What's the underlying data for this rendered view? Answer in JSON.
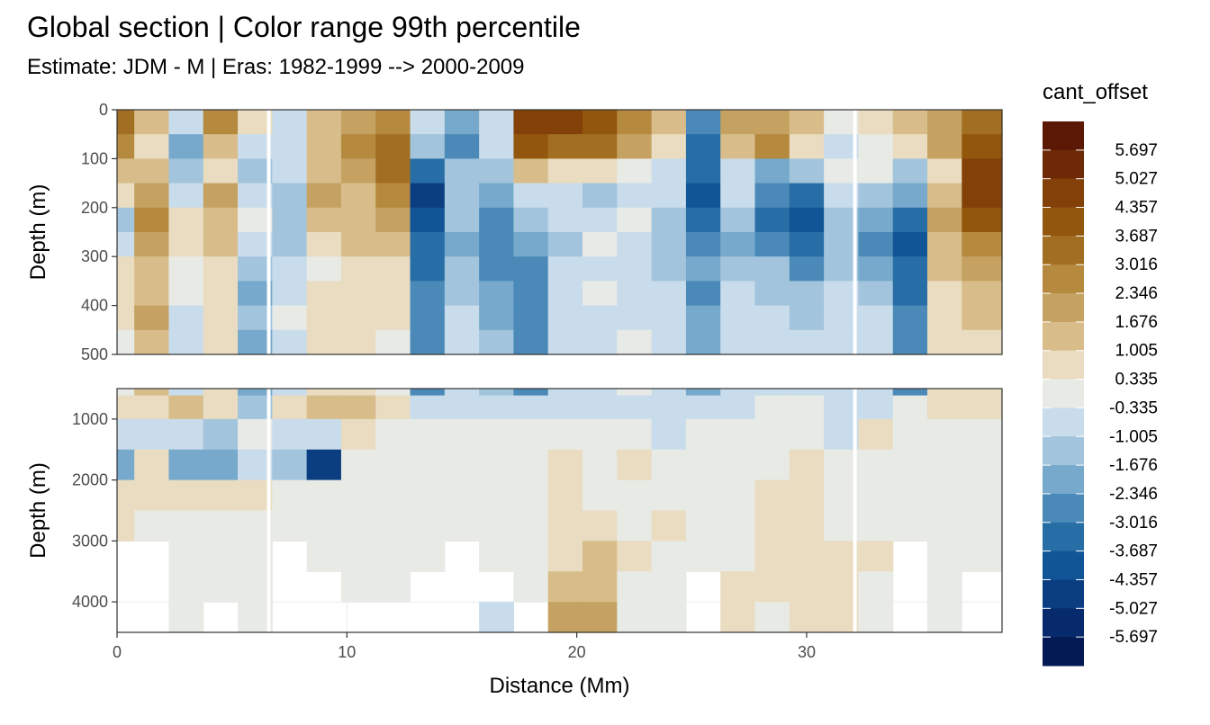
{
  "title": "Global section | Color range 99th percentile",
  "subtitle": "Estimate: JDM - M | Eras: 1982-1999 --> 2000-2009",
  "chart_data": {
    "type": "heatmap",
    "xlabel": "Distance (Mm)",
    "xlim": [
      0,
      38.5
    ],
    "x_ticks": [
      0,
      10,
      20,
      30
    ],
    "panels": [
      {
        "name": "upper",
        "ylabel": "Depth (m)",
        "ylim": [
          0,
          500
        ],
        "y_ticks": [
          0,
          100,
          200,
          300,
          400,
          500
        ],
        "reversed": true
      },
      {
        "name": "lower",
        "ylabel": "Depth (m)",
        "ylim": [
          500,
          4500
        ],
        "y_ticks": [
          1000,
          2000,
          3000,
          4000
        ],
        "reversed": true
      }
    ],
    "gap_lines_x": [
      6.6,
      32.1
    ],
    "colorbar": {
      "title": "cant_offset",
      "labels": [
        "5.697",
        "5.027",
        "4.357",
        "3.687",
        "3.016",
        "2.346",
        "1.676",
        "1.005",
        "0.335",
        "-0.335",
        "-1.005",
        "-1.676",
        "-2.346",
        "-3.016",
        "-3.687",
        "-4.357",
        "-5.027",
        "-5.697"
      ],
      "colors": [
        "#5b1805",
        "#6e2a07",
        "#834009",
        "#92560d",
        "#a26f22",
        "#b5893e",
        "#c5a262",
        "#d8bd8a",
        "#e9dcc1",
        "#e8eae6",
        "#c9dceb",
        "#a2c4dc",
        "#76a9cb",
        "#4b8ab8",
        "#286ea6",
        "#125596",
        "#0a3e81",
        "#062a6b",
        "#041a55"
      ]
    },
    "section": {
      "x": [
        0,
        1.5,
        3,
        4.5,
        6,
        7.5,
        9,
        10.5,
        12,
        13.5,
        15,
        16.5,
        18,
        19.5,
        21,
        22.5,
        24,
        25.5,
        27,
        28.5,
        30,
        31.5,
        33,
        34.5,
        36,
        37.5
      ],
      "depth": [
        25,
        75,
        125,
        175,
        225,
        275,
        325,
        375,
        425,
        475,
        750,
        1250,
        1750,
        2250,
        2750,
        3250,
        3750,
        4250
      ],
      "values": [
        [
          3.1,
          1.4,
          -0.8,
          2.4,
          1.0,
          -0.4,
          1.5,
          2.1,
          2.5,
          -0.6,
          -2.0,
          -0.4,
          4.6,
          4.4,
          4.0,
          2.6,
          1.2,
          -3.0,
          1.8,
          2.2,
          1.2,
          -0.3,
          0.6,
          1.6,
          2.3,
          3.5
        ],
        [
          2.8,
          1.0,
          -2.2,
          1.6,
          -1.0,
          -0.6,
          1.1,
          2.4,
          3.3,
          -1.2,
          -2.6,
          -1.0,
          4.2,
          3.6,
          3.5,
          2.2,
          0.8,
          -3.6,
          1.4,
          2.6,
          1.0,
          -0.6,
          0.2,
          1.0,
          1.8,
          3.9
        ],
        [
          1.6,
          1.2,
          -1.6,
          1.0,
          -1.6,
          -0.8,
          1.6,
          2.2,
          3.6,
          -3.2,
          -1.5,
          -1.6,
          1.4,
          0.6,
          0.6,
          0.3,
          -0.5,
          -3.2,
          -0.4,
          -2.0,
          -1.2,
          -0.3,
          0.3,
          -1.2,
          1.0,
          4.5
        ],
        [
          1.0,
          2.3,
          -0.4,
          1.9,
          -0.8,
          -1.2,
          2.0,
          1.6,
          3.0,
          -4.4,
          -1.2,
          -2.1,
          -0.7,
          -0.9,
          -1.1,
          -0.5,
          -0.8,
          -3.8,
          -1.0,
          -3.0,
          -3.4,
          -0.7,
          -1.5,
          -2.0,
          1.5,
          4.7
        ],
        [
          -1.1,
          3.0,
          0.6,
          1.6,
          -0.3,
          -1.6,
          1.3,
          1.1,
          2.0,
          -4.0,
          -1.6,
          -2.6,
          -1.3,
          -0.6,
          -0.8,
          -0.3,
          -1.2,
          -3.4,
          -1.6,
          -3.4,
          -4.2,
          -1.2,
          -2.3,
          -3.6,
          1.9,
          4.0
        ],
        [
          -0.6,
          2.2,
          0.9,
          1.2,
          -0.6,
          -1.3,
          0.7,
          1.3,
          1.2,
          -3.6,
          -1.9,
          -2.4,
          -1.9,
          -1.2,
          -0.3,
          -0.6,
          -1.6,
          -3.0,
          -1.9,
          -2.6,
          -3.2,
          -1.6,
          -2.6,
          -4.0,
          1.5,
          3.0
        ],
        [
          0.4,
          1.6,
          0.3,
          0.7,
          -1.3,
          -0.9,
          0.2,
          0.8,
          0.9,
          -3.2,
          -1.3,
          -2.9,
          -2.4,
          -1.0,
          -0.4,
          -0.8,
          -1.2,
          -2.2,
          -1.3,
          -1.5,
          -2.6,
          -1.3,
          -1.9,
          -3.4,
          1.1,
          2.2
        ],
        [
          0.7,
          1.4,
          -0.3,
          0.4,
          -1.7,
          -0.5,
          0.5,
          0.6,
          1.0,
          -2.8,
          -1.2,
          -2.1,
          -2.7,
          -0.6,
          -0.2,
          -0.5,
          -0.8,
          -2.5,
          -0.9,
          -1.1,
          -1.6,
          -1.0,
          -1.4,
          -3.2,
          0.8,
          1.6
        ],
        [
          0.5,
          1.9,
          -0.8,
          1.0,
          -1.4,
          -0.2,
          0.9,
          0.5,
          0.4,
          -2.6,
          -0.9,
          -2.0,
          -2.9,
          -0.9,
          -0.5,
          -0.4,
          -0.6,
          -2.3,
          -0.7,
          -0.8,
          -1.1,
          -0.7,
          -0.9,
          -3.0,
          0.6,
          1.2
        ],
        [
          0.2,
          1.6,
          -0.9,
          0.8,
          -2.1,
          -0.4,
          0.8,
          0.9,
          0.3,
          -2.9,
          -0.7,
          -1.4,
          -2.5,
          -0.7,
          -0.4,
          -0.3,
          -0.7,
          -2.0,
          -0.4,
          -0.6,
          -0.9,
          -0.6,
          -0.7,
          -2.9,
          0.4,
          0.9
        ],
        [
          0.6,
          0.9,
          1.1,
          0.7,
          -1.2,
          0.4,
          1.3,
          1.4,
          1.0,
          -0.6,
          -0.7,
          -0.9,
          -0.4,
          -0.4,
          -0.8,
          -0.5,
          -0.6,
          -0.4,
          -0.7,
          -0.2,
          -0.3,
          -0.9,
          -0.7,
          0.2,
          0.4,
          0.6
        ],
        [
          -1.0,
          -0.4,
          -0.7,
          -1.3,
          0.2,
          -0.6,
          -0.8,
          0.7,
          0.1,
          -0.2,
          -0.1,
          -0.3,
          0.0,
          -0.2,
          -0.2,
          -0.3,
          -0.7,
          0.1,
          -0.2,
          0.2,
          -0.1,
          -0.4,
          0.5,
          0.0,
          0.2,
          0.3
        ],
        [
          -1.8,
          0.4,
          -1.9,
          -1.7,
          -0.9,
          -1.2,
          -4.8,
          0.2,
          0.0,
          0.1,
          -0.2,
          0.0,
          0.1,
          0.6,
          0.2,
          0.6,
          0.2,
          0.0,
          0.1,
          0.2,
          0.5,
          0.2,
          0.3,
          0.1,
          0.1,
          0.0
        ],
        [
          0.6,
          0.5,
          0.7,
          0.5,
          0.5,
          0.0,
          0.0,
          0.0,
          0.1,
          0.0,
          0.2,
          0.0,
          0.0,
          0.7,
          0.3,
          0.1,
          0.2,
          0.0,
          0.3,
          0.4,
          0.4,
          0.0,
          0.2,
          0.0,
          0.0,
          0.0
        ],
        [
          0.4,
          0.0,
          0.0,
          0.0,
          0.0,
          0.0,
          0.0,
          0.0,
          0.0,
          0.0,
          0.0,
          0.0,
          0.0,
          0.6,
          0.6,
          0.2,
          0.4,
          0.1,
          0.3,
          0.8,
          0.6,
          0.3,
          0.2,
          0.0,
          0.0,
          0.0
        ],
        [
          null,
          null,
          0.0,
          0.0,
          0.0,
          null,
          0.0,
          0.0,
          0.0,
          0.0,
          null,
          0.0,
          0.0,
          0.7,
          1.1,
          0.4,
          0.2,
          0.2,
          0.3,
          0.9,
          0.7,
          0.4,
          0.4,
          null,
          0.0,
          0.0
        ],
        [
          null,
          null,
          0.0,
          0.0,
          0.0,
          null,
          null,
          0.0,
          0.0,
          null,
          null,
          null,
          0.0,
          1.3,
          1.6,
          0.2,
          0.0,
          null,
          0.5,
          0.5,
          0.4,
          0.6,
          0.3,
          null,
          0.0,
          null
        ],
        [
          null,
          null,
          0.0,
          null,
          0.0,
          null,
          null,
          null,
          null,
          null,
          null,
          -0.4,
          null,
          1.8,
          2.1,
          0.1,
          0.0,
          null,
          0.4,
          0.3,
          0.6,
          0.6,
          0.2,
          null,
          0.0,
          null
        ]
      ]
    }
  }
}
